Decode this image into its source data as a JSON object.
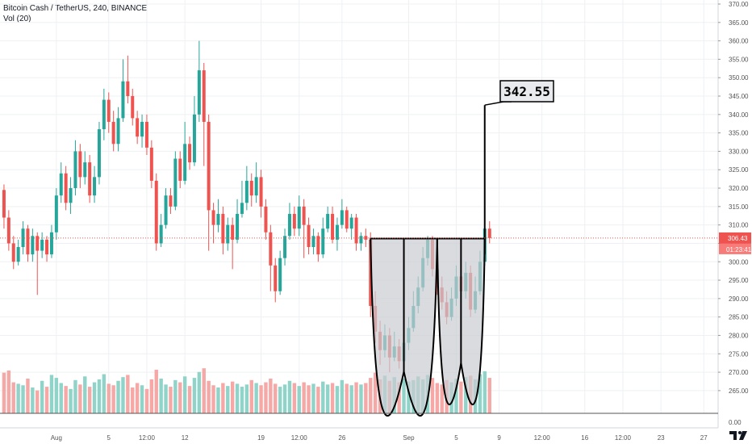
{
  "header": {
    "title": "Bitcoin Cash / TetherUS, 240, BINANCE",
    "indicator": "Vol (20)"
  },
  "colors": {
    "up": "#26a69a",
    "down": "#ef5350",
    "vol_up": "#8fd3c9",
    "vol_down": "#f5a8a6",
    "grid": "#eef0f3",
    "axis_text": "#555555",
    "price_line": "#ef5350",
    "pattern_fill": "#c9ccd1"
  },
  "chart_data": {
    "type": "candlestick",
    "title": "Bitcoin Cash / TetherUS, 240, BINANCE",
    "y_axis": {
      "ticks": [
        "370.00",
        "365.00",
        "360.00",
        "355.00",
        "350.00",
        "345.00",
        "340.00",
        "335.00",
        "330.00",
        "325.00",
        "320.00",
        "315.00",
        "310.00",
        "305.00",
        "300.00",
        "295.00",
        "290.00",
        "285.00",
        "280.00",
        "275.00",
        "270.00",
        "265.00"
      ],
      "min": 263,
      "max": 370
    },
    "volume_axis_label": "0.00",
    "x_axis": {
      "labels": [
        "Aug",
        "5",
        "12:00",
        "12",
        "19",
        "12:00",
        "26",
        "Sep",
        "5",
        "9",
        "12:00",
        "16",
        "12:00",
        "23",
        "27"
      ],
      "label_index": [
        11,
        22,
        30,
        38,
        54,
        62,
        71,
        85,
        95,
        104,
        113,
        122,
        130,
        138,
        147
      ]
    },
    "current_price": "306.43",
    "countdown": "01:23:41",
    "target_label": "342.55",
    "target_price": 342.55,
    "pattern": "double cup",
    "pattern_points": {
      "rim_price": 306.3,
      "cup1": {
        "left_index": 77,
        "bottom_index": 84,
        "right_index": 91,
        "bottom_price": 270.2
      },
      "cup2": {
        "left_index": 91,
        "bottom_index": 96,
        "right_index": 101,
        "bottom_price": 272.5
      }
    },
    "grid": true,
    "candle_count": 103,
    "candles": [
      [
        319.5,
        312,
        321,
        309
      ],
      [
        312,
        305,
        314,
        303
      ],
      [
        305,
        300,
        307,
        298
      ],
      [
        300,
        304,
        306,
        299
      ],
      [
        304,
        309,
        311,
        302
      ],
      [
        309,
        302,
        310,
        300
      ],
      [
        302,
        307,
        309,
        300
      ],
      [
        307,
        303,
        308,
        291
      ],
      [
        303,
        306,
        308,
        301
      ],
      [
        306,
        302,
        307,
        300
      ],
      [
        302,
        308,
        310,
        301
      ],
      [
        308,
        318,
        320,
        306
      ],
      [
        318,
        324,
        327,
        316
      ],
      [
        324,
        316,
        326,
        314
      ],
      [
        316,
        320,
        323,
        313
      ],
      [
        320,
        330,
        333,
        318
      ],
      [
        330,
        323,
        332,
        320
      ],
      [
        323,
        327,
        330,
        321
      ],
      [
        327,
        318,
        329,
        316
      ],
      [
        318,
        323,
        326,
        316
      ],
      [
        323,
        336,
        338,
        321
      ],
      [
        336,
        344,
        347,
        333
      ],
      [
        344,
        338,
        346,
        335
      ],
      [
        338,
        332,
        341,
        330
      ],
      [
        332,
        339,
        342,
        330
      ],
      [
        339,
        349,
        355,
        338
      ],
      [
        349,
        345,
        356,
        343
      ],
      [
        345,
        339,
        347,
        337
      ],
      [
        339,
        334,
        341,
        332
      ],
      [
        334,
        338,
        340,
        331
      ],
      [
        338,
        331,
        340,
        329
      ],
      [
        331,
        322,
        333,
        320
      ],
      [
        322,
        305,
        324,
        303
      ],
      [
        305,
        310,
        313,
        304
      ],
      [
        310,
        318,
        320,
        309
      ],
      [
        318,
        315,
        320,
        313
      ],
      [
        315,
        328,
        330,
        314
      ],
      [
        328,
        322,
        330,
        320
      ],
      [
        322,
        332,
        338,
        321
      ],
      [
        332,
        327,
        334,
        325
      ],
      [
        327,
        340,
        345,
        326
      ],
      [
        340,
        352,
        360,
        338
      ],
      [
        352,
        338,
        354,
        326
      ],
      [
        338,
        314,
        340,
        303
      ],
      [
        314,
        310,
        316,
        305
      ],
      [
        310,
        313,
        317,
        308
      ],
      [
        313,
        305,
        315,
        302
      ],
      [
        305,
        310,
        312,
        303
      ],
      [
        310,
        306,
        312,
        298
      ],
      [
        306,
        313,
        317,
        305
      ],
      [
        313,
        316,
        322,
        312
      ],
      [
        316,
        322,
        326,
        314
      ],
      [
        322,
        318,
        324,
        315
      ],
      [
        318,
        323,
        327,
        316
      ],
      [
        323,
        315,
        325,
        312
      ],
      [
        315,
        308,
        317,
        306
      ],
      [
        308,
        299,
        310,
        292
      ],
      [
        299,
        292,
        301,
        289
      ],
      [
        292,
        301,
        303,
        291
      ],
      [
        301,
        307,
        309,
        299
      ],
      [
        307,
        313,
        316,
        306
      ],
      [
        313,
        309,
        315,
        307
      ],
      [
        309,
        315,
        318,
        307
      ],
      [
        315,
        310,
        317,
        301
      ],
      [
        310,
        304,
        312,
        302
      ],
      [
        304,
        307,
        309,
        302
      ],
      [
        307,
        302,
        308,
        300
      ],
      [
        302,
        309,
        312,
        301
      ],
      [
        309,
        313,
        315,
        308
      ],
      [
        313,
        306,
        315,
        305
      ],
      [
        306,
        310,
        312,
        303
      ],
      [
        310,
        314,
        317,
        309
      ],
      [
        314,
        309,
        315,
        308
      ],
      [
        309,
        312,
        313,
        306
      ],
      [
        312,
        305,
        313,
        303
      ],
      [
        305,
        307,
        308,
        303
      ],
      [
        307,
        306,
        309,
        304
      ],
      [
        306,
        288,
        308,
        285
      ],
      [
        288,
        281,
        292,
        278
      ],
      [
        281,
        276,
        284,
        272
      ],
      [
        276,
        280,
        283,
        274
      ],
      [
        280,
        274,
        282,
        270
      ],
      [
        274,
        277,
        281,
        273
      ],
      [
        277,
        273,
        279,
        271
      ],
      [
        273,
        278,
        280,
        272
      ],
      [
        278,
        282,
        285,
        276
      ],
      [
        282,
        288,
        292,
        281
      ],
      [
        288,
        293,
        296,
        286
      ],
      [
        293,
        301,
        304,
        292
      ],
      [
        301,
        306,
        307,
        299
      ],
      [
        306,
        298,
        307,
        296
      ],
      [
        298,
        293,
        300,
        291
      ],
      [
        293,
        289,
        296,
        287
      ],
      [
        289,
        285,
        292,
        283
      ],
      [
        285,
        290,
        293,
        284
      ],
      [
        290,
        296,
        299,
        288
      ],
      [
        296,
        292,
        298,
        290
      ],
      [
        292,
        297,
        300,
        290
      ],
      [
        297,
        287,
        299,
        285
      ],
      [
        287,
        292,
        296,
        286
      ],
      [
        292,
        300,
        303,
        291
      ],
      [
        300,
        309,
        311,
        299
      ],
      [
        309,
        306.43,
        311,
        305
      ]
    ],
    "volumes": [
      55,
      58,
      42,
      40,
      38,
      47,
      35,
      31,
      44,
      36,
      52,
      48,
      41,
      37,
      33,
      45,
      39,
      50,
      36,
      42,
      46,
      53,
      40,
      38,
      44,
      49,
      52,
      35,
      41,
      38,
      33,
      46,
      59,
      47,
      39,
      36,
      45,
      42,
      50,
      37,
      48,
      56,
      61,
      44,
      38,
      35,
      41,
      37,
      43,
      40,
      36,
      39,
      45,
      41,
      38,
      42,
      47,
      40,
      36,
      39,
      44,
      41,
      37,
      42,
      38,
      40,
      36,
      43,
      39,
      41,
      37,
      45,
      40,
      38,
      42,
      39,
      41,
      48,
      55,
      46,
      51,
      44,
      49,
      42,
      47,
      43,
      45,
      50,
      46,
      52,
      48,
      41,
      39,
      45,
      42,
      47,
      43,
      49,
      51,
      46,
      53,
      57,
      48
    ]
  }
}
